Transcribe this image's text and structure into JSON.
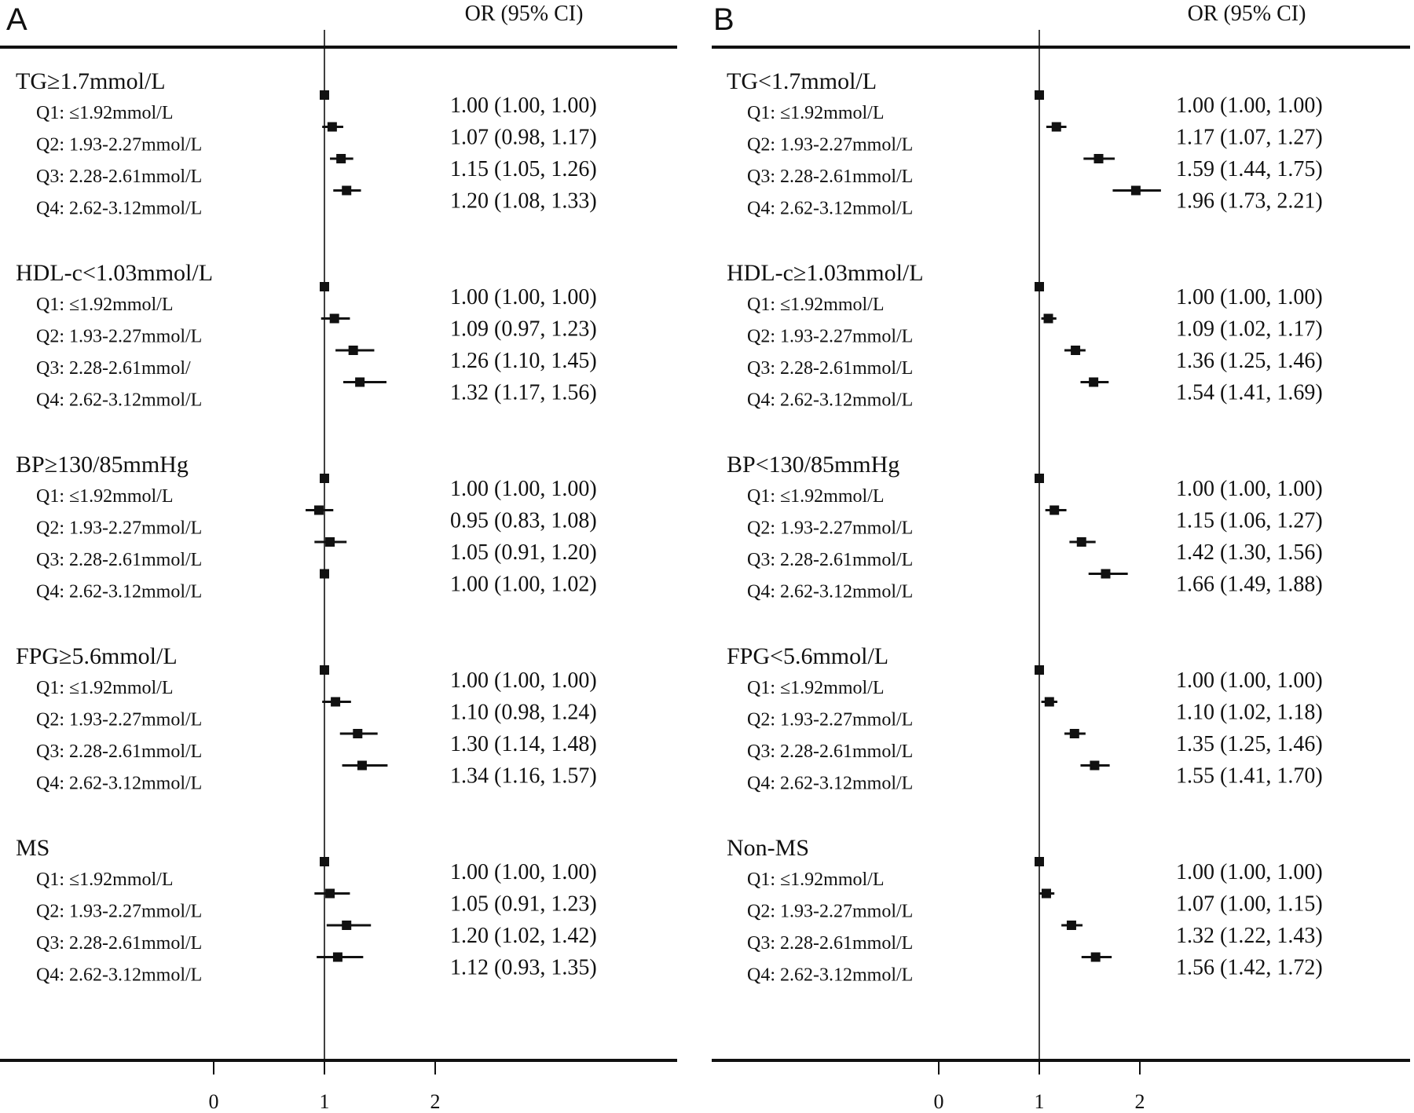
{
  "chart_data": [
    {
      "type": "forest",
      "panel_label": "A",
      "column_header": "OR (95% CI)",
      "x_ticks": [
        0,
        1,
        2
      ],
      "reference_line": 1,
      "groups": [
        {
          "title": "TG≥1.7mmol/L",
          "rows": [
            {
              "label": "Q1: ≤1.92mmol/L",
              "or": 1.0,
              "lo": 1.0,
              "hi": 1.0,
              "text": "1.00 (1.00, 1.00)"
            },
            {
              "label": "Q2: 1.93-2.27mmol/L",
              "or": 1.07,
              "lo": 0.98,
              "hi": 1.17,
              "text": "1.07 (0.98, 1.17)"
            },
            {
              "label": "Q3: 2.28-2.61mmol/L",
              "or": 1.15,
              "lo": 1.05,
              "hi": 1.26,
              "text": "1.15 (1.05, 1.26)"
            },
            {
              "label": "Q4: 2.62-3.12mmol/L",
              "or": 1.2,
              "lo": 1.08,
              "hi": 1.33,
              "text": "1.20 (1.08, 1.33)"
            }
          ]
        },
        {
          "title": "HDL-c<1.03mmol/L",
          "rows": [
            {
              "label": "Q1: ≤1.92mmol/L",
              "or": 1.0,
              "lo": 1.0,
              "hi": 1.0,
              "text": "1.00 (1.00, 1.00)"
            },
            {
              "label": "Q2: 1.93-2.27mmol/L",
              "or": 1.09,
              "lo": 0.97,
              "hi": 1.23,
              "text": "1.09 (0.97, 1.23)"
            },
            {
              "label": "Q3: 2.28-2.61mmol/",
              "or": 1.26,
              "lo": 1.1,
              "hi": 1.45,
              "text": "1.26 (1.10, 1.45)"
            },
            {
              "label": "Q4: 2.62-3.12mmol/L",
              "or": 1.32,
              "lo": 1.17,
              "hi": 1.56,
              "text": "1.32 (1.17, 1.56)"
            }
          ]
        },
        {
          "title": "BP≥130/85mmHg",
          "rows": [
            {
              "label": "Q1: ≤1.92mmol/L",
              "or": 1.0,
              "lo": 1.0,
              "hi": 1.0,
              "text": "1.00 (1.00, 1.00)"
            },
            {
              "label": "Q2: 1.93-2.27mmol/L",
              "or": 0.95,
              "lo": 0.83,
              "hi": 1.08,
              "text": "0.95 (0.83, 1.08)"
            },
            {
              "label": "Q3: 2.28-2.61mmol/L",
              "or": 1.05,
              "lo": 0.91,
              "hi": 1.2,
              "text": "1.05 (0.91, 1.20)"
            },
            {
              "label": "Q4: 2.62-3.12mmol/L",
              "or": 1.0,
              "lo": 1.0,
              "hi": 1.02,
              "text": "1.00 (1.00, 1.02)"
            }
          ]
        },
        {
          "title": "FPG≥5.6mmol/L",
          "rows": [
            {
              "label": "Q1: ≤1.92mmol/L",
              "or": 1.0,
              "lo": 1.0,
              "hi": 1.0,
              "text": "1.00 (1.00, 1.00)"
            },
            {
              "label": "Q2: 1.93-2.27mmol/L",
              "or": 1.1,
              "lo": 0.98,
              "hi": 1.24,
              "text": "1.10 (0.98, 1.24)"
            },
            {
              "label": "Q3: 2.28-2.61mmol/L",
              "or": 1.3,
              "lo": 1.14,
              "hi": 1.48,
              "text": "1.30 (1.14, 1.48)"
            },
            {
              "label": "Q4: 2.62-3.12mmol/L",
              "or": 1.34,
              "lo": 1.16,
              "hi": 1.57,
              "text": "1.34 (1.16, 1.57)"
            }
          ]
        },
        {
          "title": "MS",
          "rows": [
            {
              "label": "Q1: ≤1.92mmol/L",
              "or": 1.0,
              "lo": 1.0,
              "hi": 1.0,
              "text": "1.00 (1.00, 1.00)"
            },
            {
              "label": "Q2: 1.93-2.27mmol/L",
              "or": 1.05,
              "lo": 0.91,
              "hi": 1.23,
              "text": "1.05 (0.91, 1.23)"
            },
            {
              "label": "Q3: 2.28-2.61mmol/L",
              "or": 1.2,
              "lo": 1.02,
              "hi": 1.42,
              "text": "1.20 (1.02, 1.42)"
            },
            {
              "label": "Q4: 2.62-3.12mmol/L",
              "or": 1.12,
              "lo": 0.93,
              "hi": 1.35,
              "text": "1.12 (0.93, 1.35)"
            }
          ]
        }
      ]
    },
    {
      "type": "forest",
      "panel_label": "B",
      "column_header": "OR (95% CI)",
      "x_ticks": [
        0,
        1,
        2
      ],
      "reference_line": 1,
      "groups": [
        {
          "title": "TG<1.7mmol/L",
          "rows": [
            {
              "label": "Q1: ≤1.92mmol/L",
              "or": 1.0,
              "lo": 1.0,
              "hi": 1.0,
              "text": "1.00 (1.00, 1.00)"
            },
            {
              "label": "Q2: 1.93-2.27mmol/L",
              "or": 1.17,
              "lo": 1.07,
              "hi": 1.27,
              "text": "1.17 (1.07, 1.27)"
            },
            {
              "label": "Q3: 2.28-2.61mmol/L",
              "or": 1.59,
              "lo": 1.44,
              "hi": 1.75,
              "text": "1.59 (1.44, 1.75)"
            },
            {
              "label": "Q4: 2.62-3.12mmol/L",
              "or": 1.96,
              "lo": 1.73,
              "hi": 2.21,
              "text": "1.96 (1.73, 2.21)"
            }
          ]
        },
        {
          "title": "HDL-c≥1.03mmol/L",
          "rows": [
            {
              "label": "Q1: ≤1.92mmol/L",
              "or": 1.0,
              "lo": 1.0,
              "hi": 1.0,
              "text": "1.00 (1.00, 1.00)"
            },
            {
              "label": "Q2: 1.93-2.27mmol/L",
              "or": 1.09,
              "lo": 1.02,
              "hi": 1.17,
              "text": "1.09 (1.02, 1.17)"
            },
            {
              "label": "Q3: 2.28-2.61mmol/L",
              "or": 1.36,
              "lo": 1.25,
              "hi": 1.46,
              "text": "1.36 (1.25, 1.46)"
            },
            {
              "label": "Q4: 2.62-3.12mmol/L",
              "or": 1.54,
              "lo": 1.41,
              "hi": 1.69,
              "text": "1.54 (1.41, 1.69)"
            }
          ]
        },
        {
          "title": "BP<130/85mmHg",
          "rows": [
            {
              "label": "Q1: ≤1.92mmol/L",
              "or": 1.0,
              "lo": 1.0,
              "hi": 1.0,
              "text": "1.00 (1.00, 1.00)"
            },
            {
              "label": "Q2: 1.93-2.27mmol/L",
              "or": 1.15,
              "lo": 1.06,
              "hi": 1.27,
              "text": "1.15 (1.06, 1.27)"
            },
            {
              "label": "Q3: 2.28-2.61mmol/L",
              "or": 1.42,
              "lo": 1.3,
              "hi": 1.56,
              "text": "1.42 (1.30, 1.56)"
            },
            {
              "label": "Q4: 2.62-3.12mmol/L",
              "or": 1.66,
              "lo": 1.49,
              "hi": 1.88,
              "text": "1.66 (1.49, 1.88)"
            }
          ]
        },
        {
          "title": "FPG<5.6mmol/L",
          "rows": [
            {
              "label": "Q1: ≤1.92mmol/L",
              "or": 1.0,
              "lo": 1.0,
              "hi": 1.0,
              "text": "1.00 (1.00, 1.00)"
            },
            {
              "label": "Q2: 1.93-2.27mmol/L",
              "or": 1.1,
              "lo": 1.02,
              "hi": 1.18,
              "text": "1.10 (1.02, 1.18)"
            },
            {
              "label": "Q3: 2.28-2.61mmol/L",
              "or": 1.35,
              "lo": 1.25,
              "hi": 1.46,
              "text": "1.35 (1.25, 1.46)"
            },
            {
              "label": "Q4: 2.62-3.12mmol/L",
              "or": 1.55,
              "lo": 1.41,
              "hi": 1.7,
              "text": "1.55 (1.41, 1.70)"
            }
          ]
        },
        {
          "title": "Non-MS",
          "rows": [
            {
              "label": "Q1: ≤1.92mmol/L",
              "or": 1.0,
              "lo": 1.0,
              "hi": 1.0,
              "text": "1.00 (1.00, 1.00)"
            },
            {
              "label": "Q2: 1.93-2.27mmol/L",
              "or": 1.07,
              "lo": 1.0,
              "hi": 1.15,
              "text": "1.07 (1.00, 1.15)"
            },
            {
              "label": "Q3: 2.28-2.61mmol/L",
              "or": 1.32,
              "lo": 1.22,
              "hi": 1.43,
              "text": "1.32 (1.22, 1.43)"
            },
            {
              "label": "Q4: 2.62-3.12mmol/L",
              "or": 1.56,
              "lo": 1.42,
              "hi": 1.72,
              "text": "1.56 (1.42, 1.72)"
            }
          ]
        }
      ]
    }
  ]
}
